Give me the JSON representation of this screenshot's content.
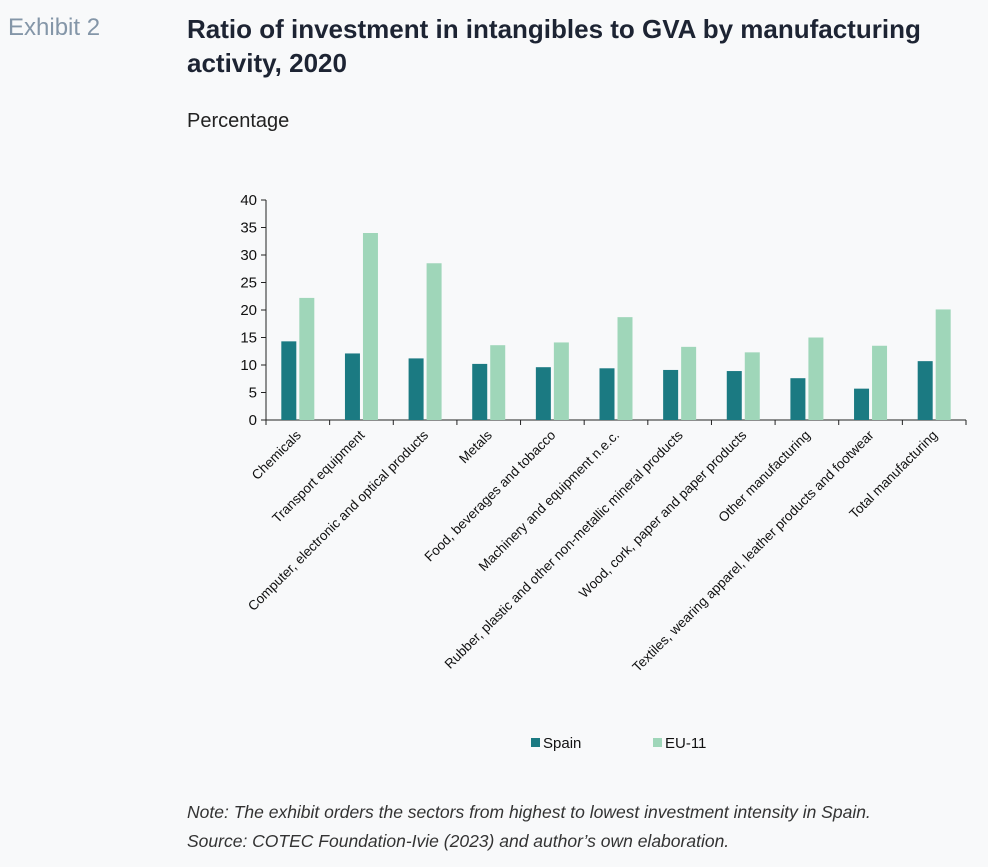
{
  "header": {
    "exhibit": "Exhibit 2",
    "title": "Ratio of investment in intangibles to GVA by manufacturing activity, 2020",
    "subtitle": "Percentage"
  },
  "notes": {
    "note": "Note: The exhibit orders the sectors from highest to lowest investment intensity in Spain.",
    "source": "Source: COTEC Foundation-Ivie (2023) and author’s own elaboration."
  },
  "chart_data": {
    "type": "bar",
    "title": "Ratio of investment in intangibles to GVA by manufacturing activity, 2020",
    "ylabel": "Percentage",
    "ylim": [
      0,
      40
    ],
    "yticks": [
      0,
      5,
      10,
      15,
      20,
      25,
      30,
      35,
      40
    ],
    "grid": false,
    "legend_position": "bottom",
    "categories": [
      "Chemicals",
      "Transport equipment",
      "Computer, electronic and optical products",
      "Metals",
      "Food, beverages and tobacco",
      "Machinery and equipment n.e.c.",
      "Rubber, plastic and other non-metallic mineral products",
      "Wood, cork, paper and paper products",
      "Other manufacturing",
      "Textiles, wearing apparel, leather products and footwear",
      "Total manufacturing"
    ],
    "series": [
      {
        "name": "Spain",
        "color": "#1b7a82",
        "values": [
          14.3,
          12.1,
          11.2,
          10.2,
          9.6,
          9.4,
          9.1,
          8.9,
          7.6,
          5.7,
          10.7
        ]
      },
      {
        "name": "EU-11",
        "color": "#9fd6b9",
        "values": [
          22.2,
          34.0,
          28.5,
          13.6,
          14.1,
          18.7,
          13.3,
          12.3,
          15.0,
          13.5,
          20.1
        ]
      }
    ]
  }
}
